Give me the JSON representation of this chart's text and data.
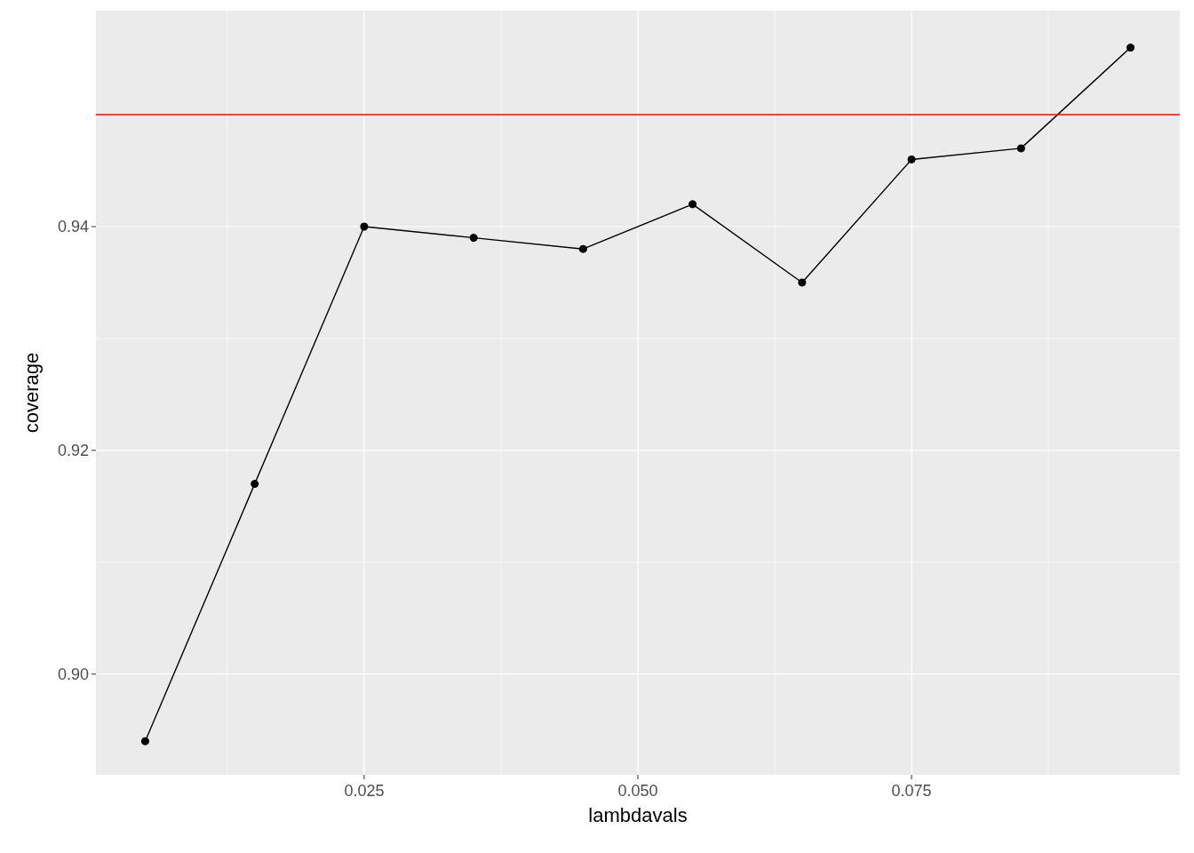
{
  "chart_data": {
    "type": "line",
    "xlabel": "lambdavals",
    "ylabel": "coverage",
    "x": [
      0.005,
      0.015,
      0.025,
      0.035,
      0.045,
      0.055,
      0.065,
      0.075,
      0.085,
      0.095
    ],
    "series": [
      {
        "color": "#000000",
        "values": [
          0.894,
          0.917,
          0.94,
          0.939,
          0.938,
          0.942,
          0.935,
          0.946,
          0.947,
          0.956
        ]
      }
    ],
    "xlim": [
      0.0005,
      0.0995
    ],
    "xticks": [
      {
        "value": 0.0125,
        "label": null
      },
      0.025,
      {
        "value": 0.0375,
        "label": null
      },
      {
        "value": 0.05,
        "label": "0.050"
      },
      {
        "value": 0.0625,
        "label": null
      },
      0.075,
      {
        "value": 0.0875,
        "label": null
      }
    ],
    "ylim": [
      0.891,
      0.9593
    ],
    "yticks": [
      {
        "value": 0.9,
        "label": "0.90"
      },
      {
        "value": 0.91,
        "label": null
      },
      0.92,
      {
        "value": 0.93,
        "label": null
      },
      0.94,
      {
        "value": 0.95,
        "label": null
      }
    ],
    "ref_lines": [
      {
        "axis": "y",
        "value": 0.95,
        "color": "#ff0000",
        "line_style": "solid"
      }
    ],
    "grid": true,
    "marker": "circle",
    "line_style": "solid"
  }
}
